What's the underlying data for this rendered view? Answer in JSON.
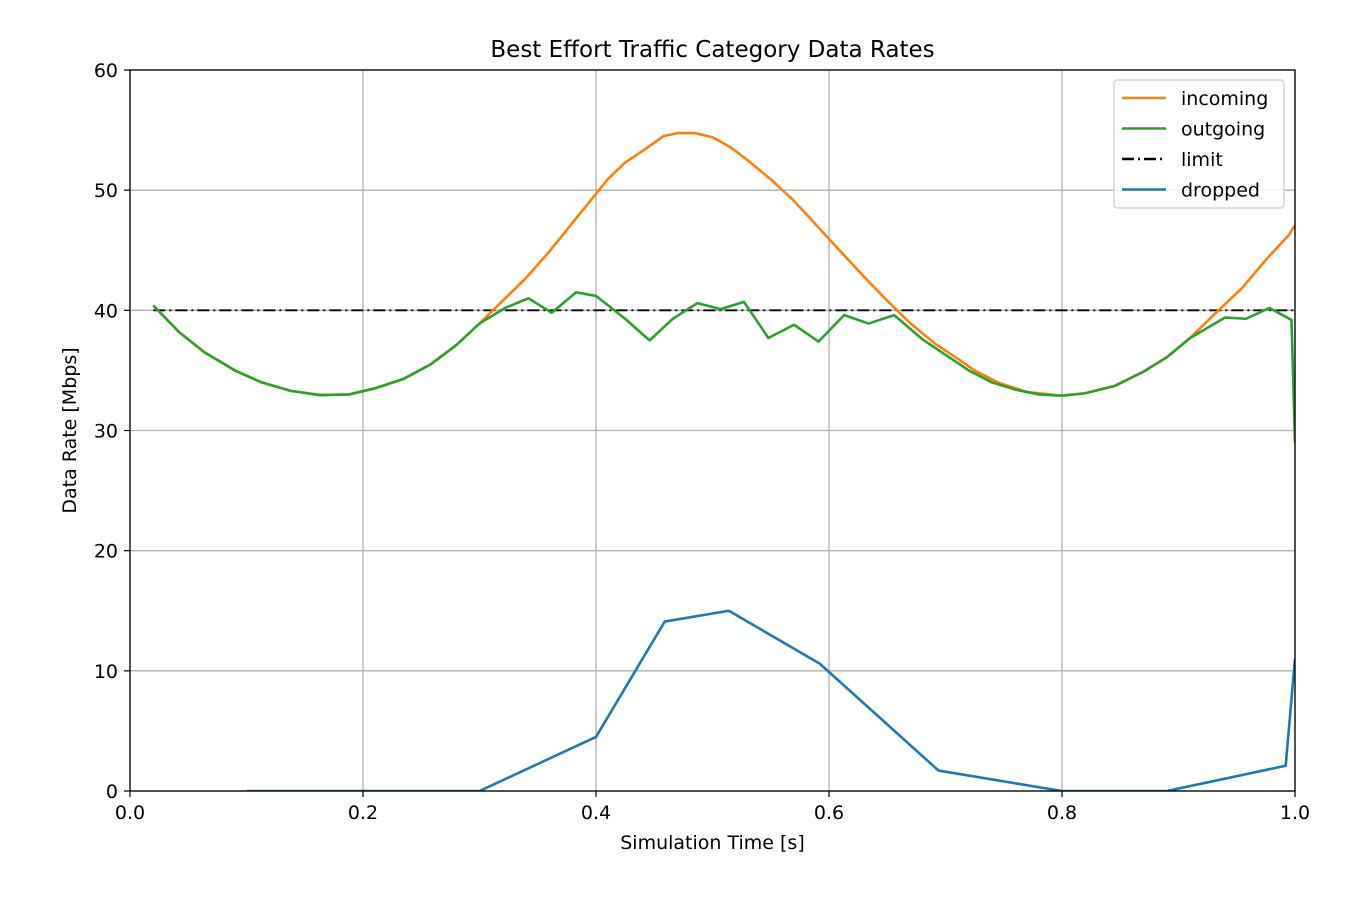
{
  "chart_data": {
    "type": "line",
    "title": "Best Effort Traffic Category Data Rates",
    "xlabel": "Simulation Time [s]",
    "ylabel": "Data Rate [Mbps]",
    "xlim": [
      0.0,
      1.0
    ],
    "ylim": [
      0,
      60
    ],
    "xticks": [
      0.0,
      0.2,
      0.4,
      0.6,
      0.8,
      1.0
    ],
    "xtick_labels": [
      "0.0",
      "0.2",
      "0.4",
      "0.6",
      "0.8",
      "1.0"
    ],
    "yticks": [
      0,
      10,
      20,
      30,
      40,
      50,
      60
    ],
    "ytick_labels": [
      "0",
      "10",
      "20",
      "30",
      "40",
      "50",
      "60"
    ],
    "grid": true,
    "legend_position": "top-right",
    "series": [
      {
        "name": "incoming",
        "color": "#ff7f0e",
        "style": "solid",
        "points": [
          [
            0.02,
            40.4
          ],
          [
            0.042,
            38.2
          ],
          [
            0.064,
            36.5
          ],
          [
            0.09,
            35.0
          ],
          [
            0.113,
            34.0
          ],
          [
            0.138,
            33.3
          ],
          [
            0.163,
            32.95
          ],
          [
            0.188,
            33.0
          ],
          [
            0.21,
            33.5
          ],
          [
            0.235,
            34.3
          ],
          [
            0.258,
            35.5
          ],
          [
            0.28,
            37.1
          ],
          [
            0.3,
            38.9
          ],
          [
            0.32,
            40.8
          ],
          [
            0.34,
            42.7
          ],
          [
            0.36,
            44.9
          ],
          [
            0.38,
            47.3
          ],
          [
            0.4,
            49.7
          ],
          [
            0.41,
            50.9
          ],
          [
            0.425,
            52.3
          ],
          [
            0.442,
            53.4
          ],
          [
            0.458,
            54.5
          ],
          [
            0.47,
            54.75
          ],
          [
            0.485,
            54.75
          ],
          [
            0.5,
            54.4
          ],
          [
            0.515,
            53.6
          ],
          [
            0.53,
            52.5
          ],
          [
            0.55,
            50.9
          ],
          [
            0.57,
            49.1
          ],
          [
            0.59,
            47.0
          ],
          [
            0.61,
            44.9
          ],
          [
            0.63,
            42.8
          ],
          [
            0.65,
            40.8
          ],
          [
            0.67,
            38.9
          ],
          [
            0.69,
            37.3
          ],
          [
            0.71,
            36.0
          ],
          [
            0.725,
            35.0
          ],
          [
            0.745,
            34.0
          ],
          [
            0.77,
            33.2
          ],
          [
            0.8,
            32.9
          ],
          [
            0.82,
            33.1
          ],
          [
            0.845,
            33.7
          ],
          [
            0.87,
            34.9
          ],
          [
            0.89,
            36.1
          ],
          [
            0.91,
            37.7
          ],
          [
            0.93,
            39.6
          ],
          [
            0.955,
            41.9
          ],
          [
            0.975,
            44.2
          ],
          [
            0.995,
            46.3
          ],
          [
            1.0,
            47.1
          ]
        ]
      },
      {
        "name": "outgoing",
        "color": "#2ca02c",
        "style": "solid",
        "points": [
          [
            0.02,
            40.4
          ],
          [
            0.042,
            38.2
          ],
          [
            0.064,
            36.5
          ],
          [
            0.09,
            35.0
          ],
          [
            0.113,
            34.0
          ],
          [
            0.138,
            33.3
          ],
          [
            0.163,
            32.95
          ],
          [
            0.188,
            33.0
          ],
          [
            0.21,
            33.5
          ],
          [
            0.235,
            34.3
          ],
          [
            0.258,
            35.5
          ],
          [
            0.28,
            37.1
          ],
          [
            0.3,
            38.9
          ],
          [
            0.322,
            40.2
          ],
          [
            0.342,
            41.0
          ],
          [
            0.362,
            39.8
          ],
          [
            0.383,
            41.5
          ],
          [
            0.4,
            41.2
          ],
          [
            0.425,
            39.3
          ],
          [
            0.446,
            37.5
          ],
          [
            0.466,
            39.3
          ],
          [
            0.487,
            40.6
          ],
          [
            0.507,
            40.1
          ],
          [
            0.527,
            40.7
          ],
          [
            0.548,
            37.7
          ],
          [
            0.57,
            38.8
          ],
          [
            0.591,
            37.4
          ],
          [
            0.613,
            39.6
          ],
          [
            0.634,
            38.9
          ],
          [
            0.656,
            39.6
          ],
          [
            0.68,
            37.6
          ],
          [
            0.7,
            36.3
          ],
          [
            0.72,
            35.0
          ],
          [
            0.74,
            34.0
          ],
          [
            0.76,
            33.4
          ],
          [
            0.78,
            33.0
          ],
          [
            0.8,
            32.9
          ],
          [
            0.82,
            33.1
          ],
          [
            0.845,
            33.7
          ],
          [
            0.87,
            34.9
          ],
          [
            0.89,
            36.1
          ],
          [
            0.91,
            37.7
          ],
          [
            0.94,
            39.4
          ],
          [
            0.958,
            39.3
          ],
          [
            0.978,
            40.2
          ],
          [
            0.997,
            39.2
          ],
          [
            1.0,
            29.0
          ]
        ]
      },
      {
        "name": "limit",
        "color": "#000000",
        "style": "dashdot",
        "points": [
          [
            0.02,
            40.0
          ],
          [
            1.0,
            40.0
          ]
        ]
      },
      {
        "name": "dropped",
        "color": "#1f77b4",
        "style": "solid",
        "points": [
          [
            0.1,
            0.0
          ],
          [
            0.3,
            0.0
          ],
          [
            0.4,
            4.5
          ],
          [
            0.459,
            14.1
          ],
          [
            0.514,
            15.0
          ],
          [
            0.592,
            10.6
          ],
          [
            0.694,
            1.7
          ],
          [
            0.8,
            0.0
          ],
          [
            0.89,
            0.0
          ],
          [
            0.992,
            2.1
          ],
          [
            1.0,
            11.0
          ]
        ]
      }
    ]
  }
}
